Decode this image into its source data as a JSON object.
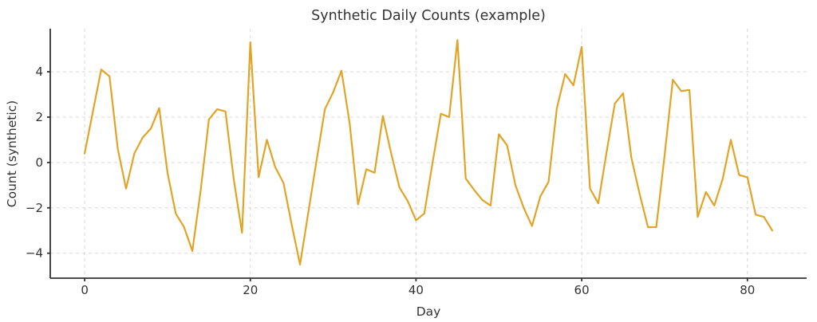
{
  "figure": {
    "title": "Synthetic Daily Counts (example)",
    "xlabel": "Day",
    "ylabel": "Count (synthetic)"
  },
  "chart_data": {
    "type": "line",
    "title": "Synthetic Daily Counts (example)",
    "xlabel": "Day",
    "ylabel": "Count (synthetic)",
    "legend": "none",
    "grid": "dashed, light gray, both axes",
    "xlim": [
      -4.15,
      87.15
    ],
    "ylim": [
      -5.1,
      5.9
    ],
    "x_ticks": [
      0,
      20,
      40,
      60,
      80
    ],
    "x_tick_labels": [
      "0",
      "20",
      "40",
      "60",
      "80"
    ],
    "y_ticks": [
      -4,
      -2,
      0,
      2,
      4
    ],
    "y_tick_labels": [
      "−4",
      "−2",
      "0",
      "2",
      "4"
    ],
    "x": {
      "start": 0,
      "step": 1,
      "count": 84
    },
    "series": [
      {
        "name": "daily-count-line",
        "color": "#E2A427",
        "values": [
          0.4,
          2.25,
          4.1,
          3.8,
          0.6,
          -1.15,
          0.4,
          1.1,
          1.5,
          2.4,
          -0.45,
          -2.25,
          -2.85,
          -3.9,
          -1.25,
          1.9,
          2.35,
          2.25,
          -0.75,
          -3.1,
          5.3,
          -0.65,
          1.0,
          -0.2,
          -0.9,
          -2.75,
          -4.5,
          -2.2,
          0.1,
          2.35,
          3.1,
          4.05,
          1.7,
          -1.85,
          -0.3,
          -0.45,
          2.05,
          0.4,
          -1.1,
          -1.7,
          -2.55,
          -2.25,
          0.0,
          2.15,
          2.0,
          5.4,
          -0.7,
          -1.2,
          -1.65,
          -1.9,
          1.25,
          0.75,
          -1.0,
          -2.0,
          -2.8,
          -1.5,
          -0.85,
          2.4,
          3.9,
          3.4,
          5.1,
          -1.15,
          -1.8,
          0.45,
          2.6,
          3.05,
          0.2,
          -1.4,
          -2.85,
          -2.85,
          0.3,
          3.65,
          3.15,
          3.2,
          -2.4,
          -1.3,
          -1.9,
          -0.75,
          1.0,
          -0.55,
          -0.65,
          -2.3,
          -2.4,
          -3.0
        ]
      }
    ]
  },
  "style": {
    "line_color": "#E2A427",
    "grid_color": "#d9d9d9",
    "spine_color": "#333333",
    "text_color": "#333333",
    "background": "#ffffff"
  }
}
